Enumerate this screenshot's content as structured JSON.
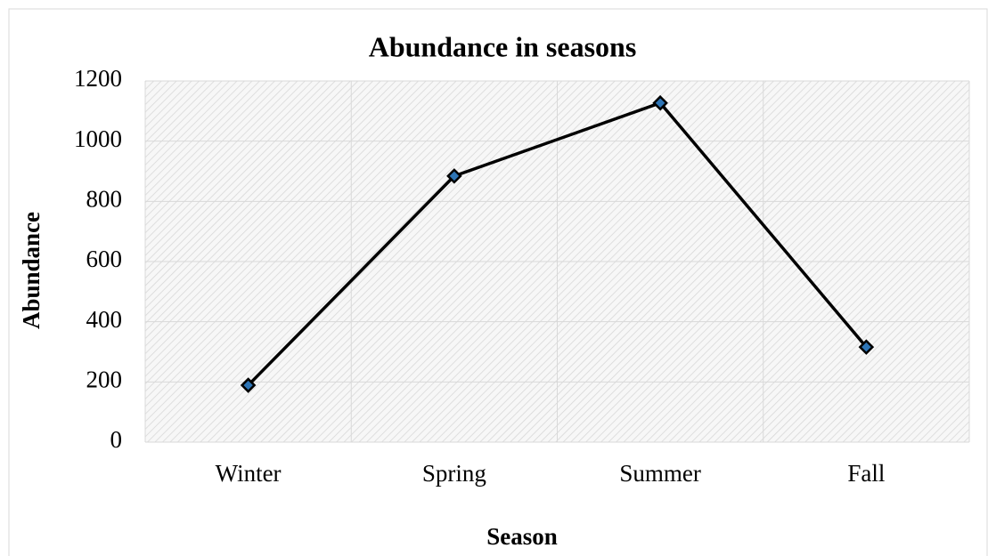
{
  "chart_data": {
    "type": "line",
    "title": "Abundance in seasons",
    "x_label": "Season",
    "y_label": "Abundance",
    "categories": [
      "Winter",
      "Spring",
      "Summer",
      "Fall"
    ],
    "values": [
      189,
      884,
      1127,
      316
    ],
    "color": "#000000",
    "ylim": [
      0,
      1200
    ],
    "yticks": [
      0,
      200,
      400,
      600,
      800,
      1000,
      1200
    ],
    "grid": true
  }
}
